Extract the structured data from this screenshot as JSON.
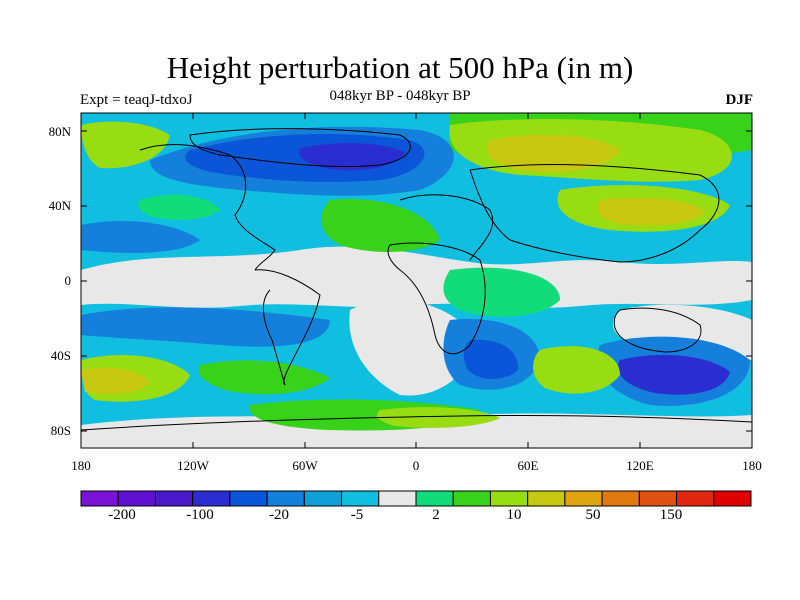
{
  "title": "Height perturbation at 500 hPa (in m)",
  "subtitle_left": "Expt = teaqJ-tdxoJ",
  "subtitle_center": "048kyr BP - 048kyr BP",
  "subtitle_right": "DJF",
  "lat_labels": [
    "80N",
    "40N",
    "0",
    "40S",
    "80S"
  ],
  "lon_labels": [
    "180",
    "120W",
    "60W",
    "0",
    "60E",
    "120E",
    "180"
  ],
  "colorbar": {
    "labels": [
      "-200",
      "-100",
      "-20",
      "-5",
      "2",
      "10",
      "50",
      "150"
    ],
    "colors": [
      "#7a12d8",
      "#6010d0",
      "#4a18c8",
      "#2a2ed0",
      "#0a55d8",
      "#1480dc",
      "#10a0d8",
      "#10bee0",
      "#e8e8e8",
      "#12dc7a",
      "#38d21a",
      "#98dc12",
      "#c8c812",
      "#e0a410",
      "#e07a10",
      "#e05010",
      "#e02810",
      "#e00000"
    ]
  },
  "colors": {
    "ocean_base": "#10bee0",
    "land_line": "#000000"
  }
}
